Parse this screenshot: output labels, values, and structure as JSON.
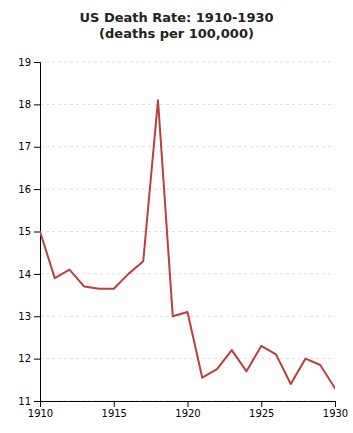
{
  "chart_data": {
    "type": "line",
    "title": "US Death Rate: 1910-1930\n(deaths per 100,000)",
    "x": [
      1910,
      1911,
      1912,
      1913,
      1914,
      1915,
      1916,
      1917,
      1918,
      1919,
      1920,
      1921,
      1922,
      1923,
      1924,
      1925,
      1926,
      1927,
      1928,
      1929,
      1930
    ],
    "values": [
      15.0,
      13.9,
      14.1,
      13.7,
      13.65,
      13.65,
      14.0,
      14.3,
      18.1,
      13.0,
      13.1,
      11.55,
      11.75,
      12.2,
      11.7,
      12.3,
      12.1,
      11.4,
      12.0,
      11.85,
      11.3
    ],
    "color": "#b84040",
    "xlim": [
      1910,
      1930
    ],
    "ylim": [
      11,
      19
    ],
    "xticks": [
      1910,
      1915,
      1920,
      1925,
      1930
    ],
    "yticks": [
      11,
      12,
      13,
      14,
      15,
      16,
      17,
      18,
      19
    ],
    "grid": true
  }
}
